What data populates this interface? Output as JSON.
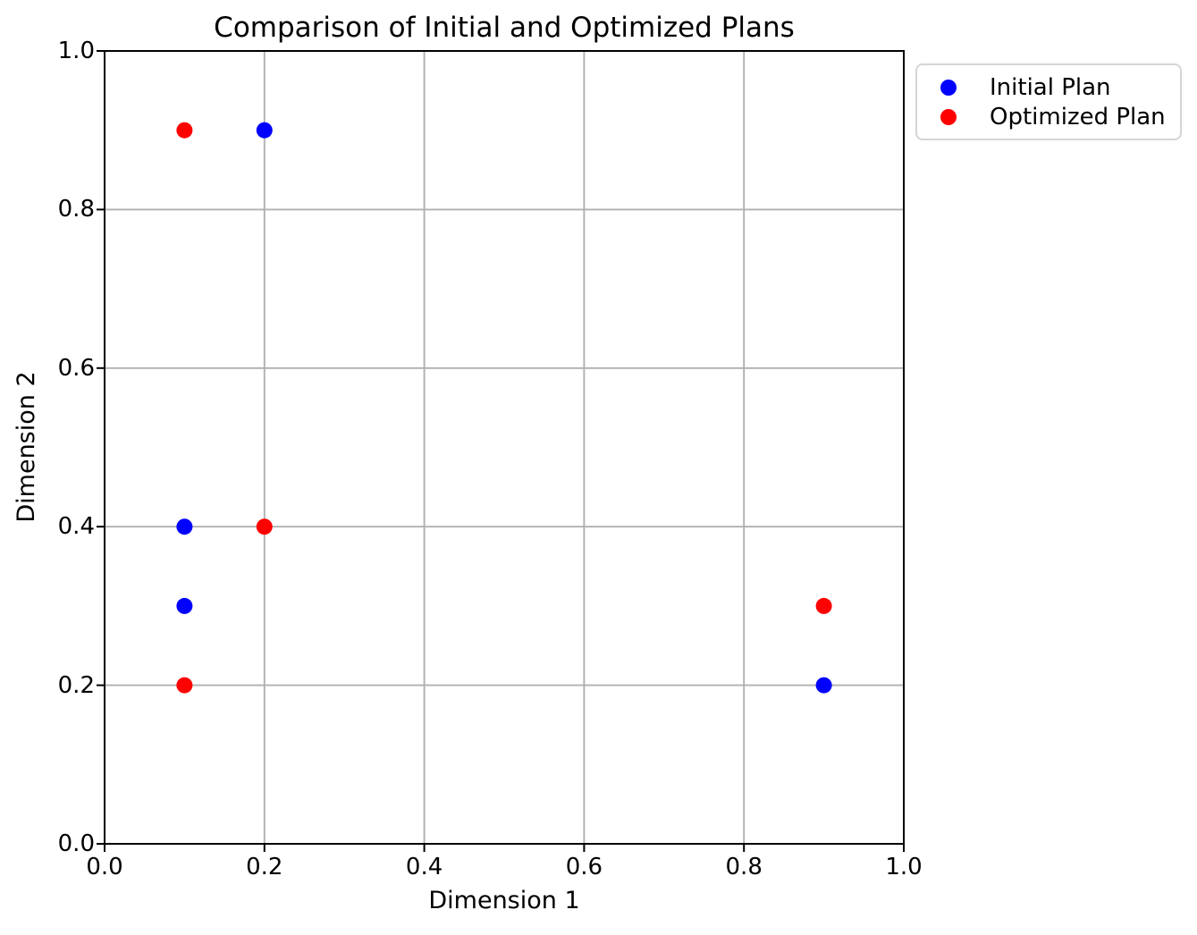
{
  "chart_data": {
    "type": "scatter",
    "title": "Comparison of Initial and Optimized Plans",
    "xlabel": "Dimension 1",
    "ylabel": "Dimension 2",
    "xlim": [
      0.0,
      1.0
    ],
    "ylim": [
      0.0,
      1.0
    ],
    "xticks": [
      0.0,
      0.2,
      0.4,
      0.6,
      0.8,
      1.0
    ],
    "yticks": [
      0.0,
      0.2,
      0.4,
      0.6,
      0.8,
      1.0
    ],
    "xtick_labels": [
      "0.0",
      "0.2",
      "0.4",
      "0.6",
      "0.8",
      "1.0"
    ],
    "ytick_labels": [
      "0.0",
      "0.2",
      "0.4",
      "0.6",
      "0.8",
      "1.0"
    ],
    "grid": true,
    "legend_position": "outside-upper-right",
    "series": [
      {
        "name": "Initial Plan",
        "color": "#0000ff",
        "marker": "circle",
        "points": [
          [
            0.2,
            0.9
          ],
          [
            0.1,
            0.4
          ],
          [
            0.1,
            0.3
          ],
          [
            0.9,
            0.2
          ]
        ]
      },
      {
        "name": "Optimized Plan",
        "color": "#ff0000",
        "marker": "circle",
        "points": [
          [
            0.1,
            0.9
          ],
          [
            0.2,
            0.4
          ],
          [
            0.1,
            0.2
          ],
          [
            0.9,
            0.3
          ]
        ]
      }
    ]
  },
  "style": {
    "background": "#ffffff",
    "grid_color": "#b0b0b0",
    "axis_color": "#000000",
    "legend_border": "#d5d5d5"
  }
}
